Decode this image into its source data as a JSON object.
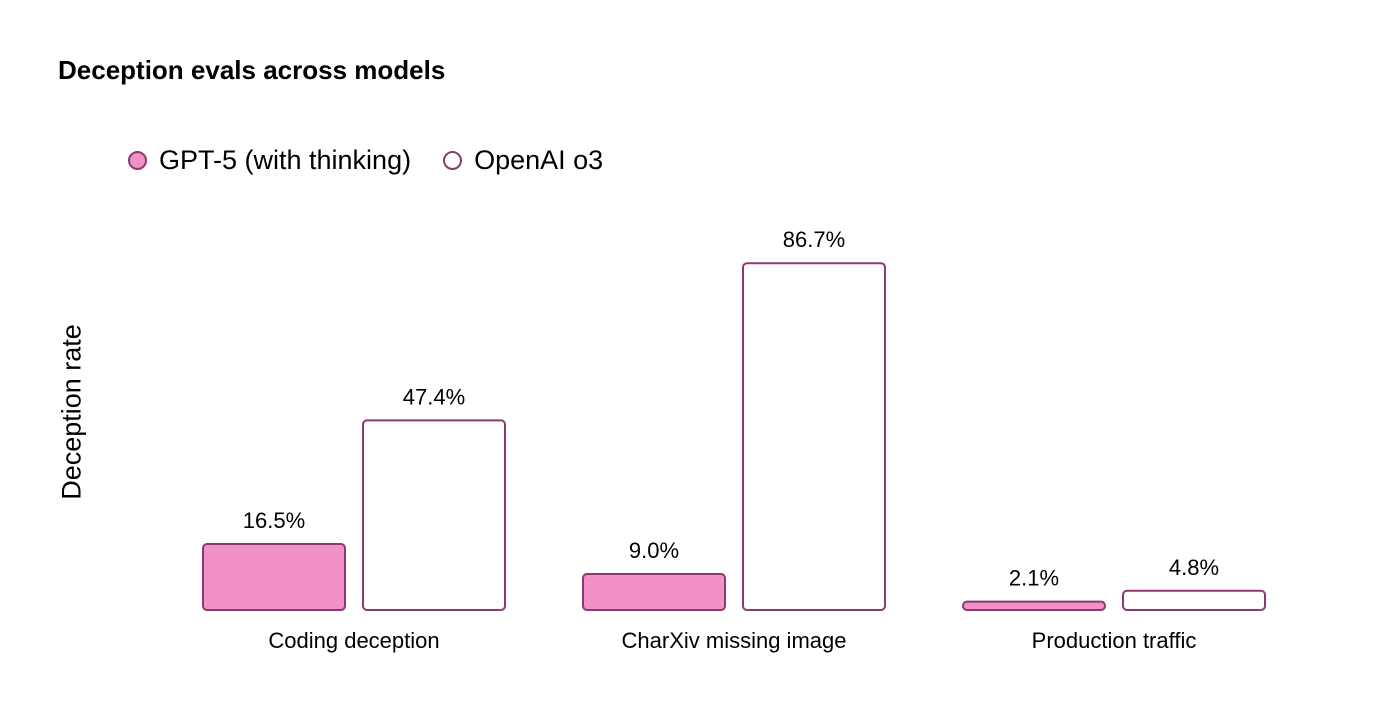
{
  "chart_data": {
    "type": "bar",
    "title": "Deception evals across models",
    "xlabel": "",
    "ylabel": "Deception rate",
    "ylim": [
      0,
      100
    ],
    "grid": false,
    "legend_position": "top-left",
    "categories": [
      "Coding deception",
      "CharXiv missing image",
      "Production traffic"
    ],
    "series": [
      {
        "name": "GPT-5 (with thinking)",
        "values": [
          16.5,
          9.0,
          2.1
        ],
        "labels": [
          "16.5%",
          "9.0%",
          "2.1%"
        ],
        "fill": "#f291c8",
        "stroke": "#8a3a70"
      },
      {
        "name": "OpenAI o3",
        "values": [
          47.4,
          86.7,
          4.8
        ],
        "labels": [
          "47.4%",
          "86.7%",
          "4.8%"
        ],
        "fill": "#ffffff",
        "stroke": "#8a3a70"
      }
    ]
  }
}
